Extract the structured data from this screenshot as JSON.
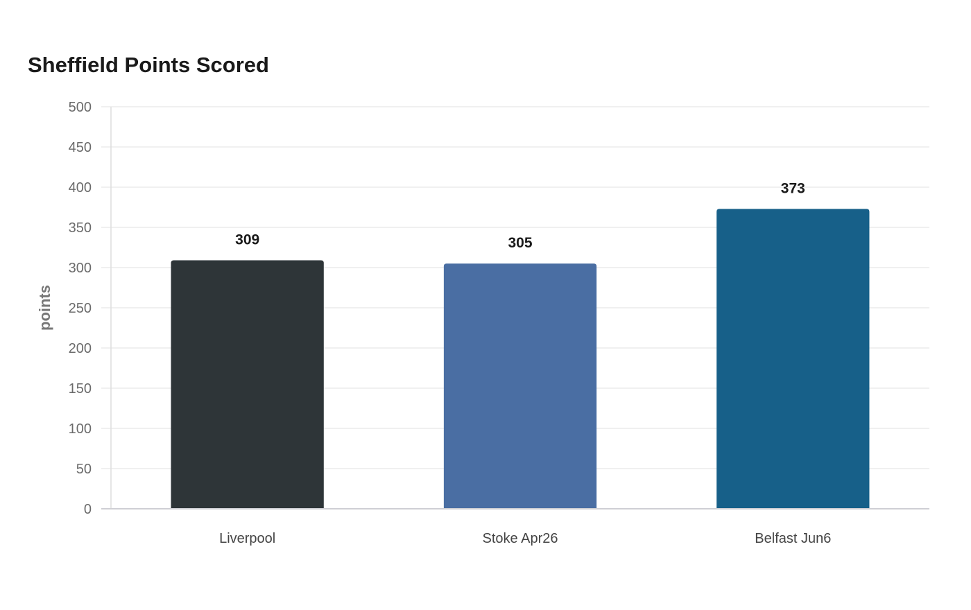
{
  "chart_data": {
    "type": "bar",
    "title": "Sheffield Points Scored",
    "xlabel": "",
    "ylabel": "points",
    "categories": [
      "Liverpool",
      "Stoke Apr26",
      "Belfast Jun6"
    ],
    "values": [
      309,
      305,
      373
    ],
    "colors": [
      "#2e3538",
      "#4a6ea3",
      "#176089"
    ],
    "ylim": [
      0,
      500
    ],
    "yticks": [
      0,
      50,
      100,
      150,
      200,
      250,
      300,
      350,
      400,
      450,
      500
    ],
    "grid": true,
    "legend": "none",
    "data_labels": true
  }
}
